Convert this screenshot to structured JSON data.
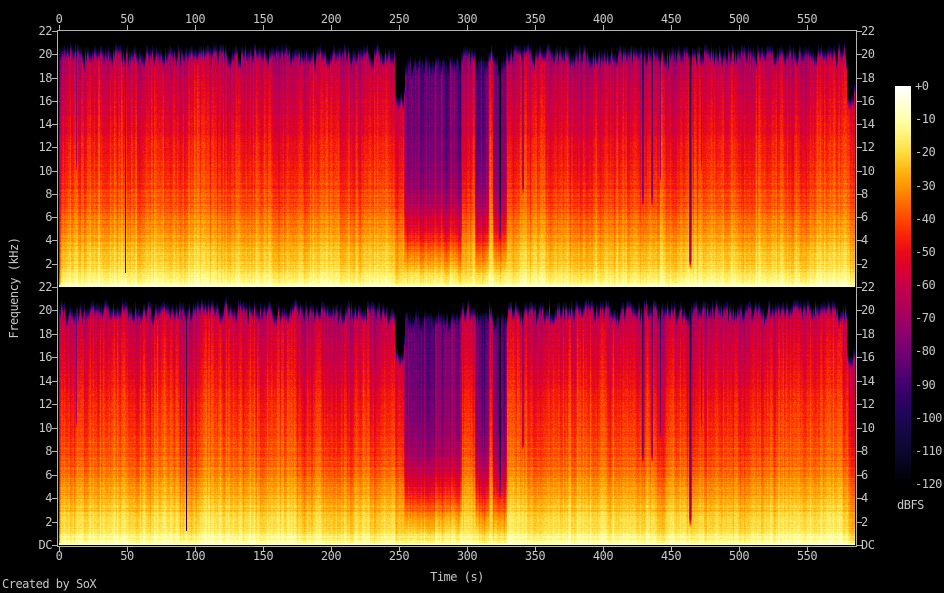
{
  "credit": "Created by SoX",
  "colors": {
    "background": "#000000",
    "axis": "#b4b4b4",
    "tick_label": "#c8c8c8"
  },
  "chart_data": {
    "type": "heatmap",
    "subtype": "audio-spectrogram",
    "generator": "SoX",
    "channel_count": 2,
    "channels": [
      {
        "name": "channel-1",
        "seed": 3
      },
      {
        "name": "channel-2",
        "seed": 11
      }
    ],
    "x_axis": {
      "label": "Time (s)",
      "min": 0,
      "max": 585,
      "tick_interval": 50,
      "ticks": [
        0,
        50,
        100,
        150,
        200,
        250,
        300,
        350,
        400,
        450,
        500,
        550
      ],
      "shown_on": [
        "top",
        "bottom"
      ]
    },
    "y_axis": {
      "label": "Frequency (kHz)",
      "min": 0,
      "max": 22,
      "tick_interval": 2,
      "ticks": [
        {
          "v": 22,
          "l": "22"
        },
        {
          "v": 20,
          "l": "20"
        },
        {
          "v": 18,
          "l": "18"
        },
        {
          "v": 16,
          "l": "16"
        },
        {
          "v": 14,
          "l": "14"
        },
        {
          "v": 12,
          "l": "12"
        },
        {
          "v": 10,
          "l": "10"
        },
        {
          "v": 8,
          "l": "8"
        },
        {
          "v": 6,
          "l": "6"
        },
        {
          "v": 4,
          "l": "4"
        },
        {
          "v": 2,
          "l": "2"
        },
        {
          "v": 0,
          "l": "DC"
        }
      ],
      "dc_label_omitted_on_top_channel": true,
      "shown_on": [
        "left",
        "right"
      ]
    },
    "colorbar": {
      "label": "dBFS",
      "max_db": 0,
      "min_db": -120,
      "tick_labels": [
        "+0",
        "-10",
        "-20",
        "-30",
        "-40",
        "-50",
        "-60",
        "-70",
        "-80",
        "-90",
        "-100",
        "-110",
        "-120"
      ],
      "palette_stops": [
        [
          0,
          255,
          255,
          255
        ],
        [
          -5,
          255,
          255,
          215
        ],
        [
          -10,
          255,
          255,
          170
        ],
        [
          -15,
          255,
          242,
          115
        ],
        [
          -20,
          255,
          220,
          62
        ],
        [
          -25,
          255,
          185,
          20
        ],
        [
          -30,
          255,
          150,
          0
        ],
        [
          -35,
          255,
          110,
          0
        ],
        [
          -40,
          255,
          72,
          0
        ],
        [
          -45,
          248,
          35,
          6
        ],
        [
          -50,
          232,
          12,
          26
        ],
        [
          -55,
          216,
          0,
          50
        ],
        [
          -60,
          198,
          0,
          72
        ],
        [
          -65,
          180,
          0,
          86
        ],
        [
          -70,
          160,
          0,
          98
        ],
        [
          -75,
          138,
          0,
          108
        ],
        [
          -80,
          115,
          0,
          115
        ],
        [
          -85,
          90,
          0,
          114
        ],
        [
          -90,
          65,
          0,
          110
        ],
        [
          -95,
          45,
          2,
          98
        ],
        [
          -100,
          30,
          6,
          85
        ],
        [
          -105,
          20,
          7,
          66
        ],
        [
          -110,
          12,
          8,
          48
        ],
        [
          -115,
          5,
          4,
          24
        ],
        [
          -120,
          0,
          0,
          0
        ],
        [
          -125,
          0,
          0,
          0
        ]
      ]
    },
    "content": {
      "spectral_envelope_loud_db": [
        [
          0,
          -4
        ],
        [
          0.4,
          -11
        ],
        [
          1,
          -17
        ],
        [
          2,
          -21
        ],
        [
          3,
          -24
        ],
        [
          4,
          -27
        ],
        [
          5,
          -31
        ],
        [
          6,
          -35
        ],
        [
          7,
          -38
        ],
        [
          8,
          -40
        ],
        [
          10,
          -44
        ],
        [
          12,
          -47
        ],
        [
          14,
          -51
        ],
        [
          16,
          -55
        ],
        [
          17.5,
          -58
        ],
        [
          19,
          -62
        ],
        [
          20,
          -68
        ],
        [
          20.6,
          -90
        ],
        [
          21,
          -115
        ],
        [
          22,
          -122
        ]
      ],
      "spectral_envelope_quiet_db": [
        [
          0,
          -7
        ],
        [
          0.4,
          -14
        ],
        [
          1,
          -20
        ],
        [
          2,
          -28
        ],
        [
          3,
          -36
        ],
        [
          4,
          -44
        ],
        [
          5,
          -52
        ],
        [
          6,
          -58
        ],
        [
          7,
          -64
        ],
        [
          8,
          -70
        ],
        [
          10,
          -76
        ],
        [
          12,
          -79
        ],
        [
          14,
          -81
        ],
        [
          16,
          -82
        ],
        [
          18,
          -84
        ],
        [
          19.3,
          -90
        ],
        [
          19.9,
          -112
        ],
        [
          20.5,
          -122
        ],
        [
          22,
          -124
        ]
      ],
      "cutoff_khz_loud": 20.35,
      "cutoff_khz_hicut": 16.25,
      "segments": [
        {
          "t0": 0,
          "t1": 247,
          "type": "loud"
        },
        {
          "t0": 247,
          "t1": 254,
          "type": "hicut"
        },
        {
          "t0": 254,
          "t1": 296,
          "type": "quiet"
        },
        {
          "t0": 296,
          "t1": 306,
          "type": "loud"
        },
        {
          "t0": 306,
          "t1": 316,
          "type": "quiet"
        },
        {
          "t0": 316,
          "t1": 319,
          "type": "loud"
        },
        {
          "t0": 319,
          "t1": 329,
          "type": "quiet"
        },
        {
          "t0": 329,
          "t1": 579,
          "type": "loud"
        },
        {
          "t0": 579,
          "t1": 585,
          "type": "hicut"
        }
      ],
      "deep_gaps": [
        {
          "t": 13,
          "w": 1.2,
          "floor_khz": 10,
          "atten": 26
        },
        {
          "t": 324,
          "w": 2,
          "floor_khz": 4,
          "atten": 40
        },
        {
          "t": 341,
          "w": 1.2,
          "floor_khz": 8,
          "atten": 35
        },
        {
          "t": 429,
          "w": 1.8,
          "floor_khz": 7,
          "atten": 35
        },
        {
          "t": 436,
          "w": 1.8,
          "floor_khz": 7,
          "atten": 32
        },
        {
          "t": 442,
          "w": 1.2,
          "floor_khz": 9,
          "atten": 30
        },
        {
          "t": 464,
          "w": 2.2,
          "floor_khz": 1.5,
          "atten": 42
        },
        {
          "t": 472,
          "w": 1,
          "floor_khz": 10,
          "atten": 28
        }
      ],
      "dropout_lines": [
        {
          "channel": 0,
          "t": 48.8
        },
        {
          "channel": 1,
          "t": 94
        }
      ]
    }
  }
}
